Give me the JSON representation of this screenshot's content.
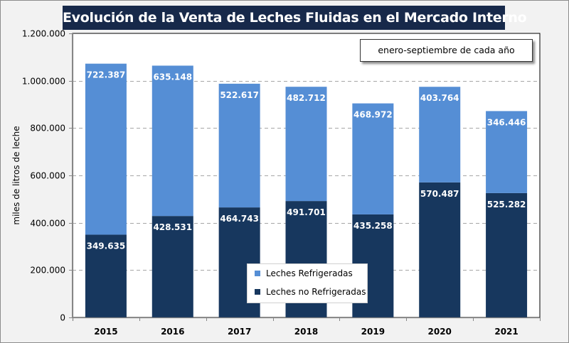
{
  "chart_data": {
    "type": "bar",
    "stacked": true,
    "title": "Evolución de la Venta de Leches Fluidas en el Mercado Interno",
    "annotation": "enero-septiembre de cada año",
    "xlabel": "",
    "ylabel": "miles de litros de leche",
    "ylim": [
      0,
      1200000
    ],
    "yticks": [
      0,
      200000,
      400000,
      600000,
      800000,
      1000000,
      1200000
    ],
    "ytick_labels": [
      "0",
      "200.000",
      "400.000",
      "600.000",
      "800.000",
      "1.000.000",
      "1.200.000"
    ],
    "grid": "horizontal dashed",
    "legend_position": "bottom-center",
    "categories": [
      "2015",
      "2016",
      "2017",
      "2018",
      "2019",
      "2020",
      "2021"
    ],
    "series": [
      {
        "name": "Leches no Refrigeradas",
        "color": "#17375e",
        "values": [
          349635,
          428531,
          464743,
          491701,
          435258,
          570487,
          525282
        ],
        "labels": [
          "349.635",
          "428.531",
          "464.743",
          "491.701",
          "435.258",
          "570.487",
          "525.282"
        ]
      },
      {
        "name": "Leches Refrigeradas",
        "color": "#558ed5",
        "values": [
          722387,
          635148,
          522617,
          482712,
          468972,
          403764,
          346446
        ],
        "labels": [
          "722.387",
          "635.148",
          "522.617",
          "482.712",
          "468.972",
          "403.764",
          "346.446"
        ]
      }
    ]
  },
  "legend": {
    "items": [
      {
        "label": "Leches Refrigeradas",
        "color": "#558ed5"
      },
      {
        "label": "Leches no Refrigeradas",
        "color": "#17375e"
      }
    ]
  },
  "colors": {
    "title_bg": "#17294a",
    "frame_bg": "#f2f2f2",
    "plot_bg": "#ffffff"
  }
}
